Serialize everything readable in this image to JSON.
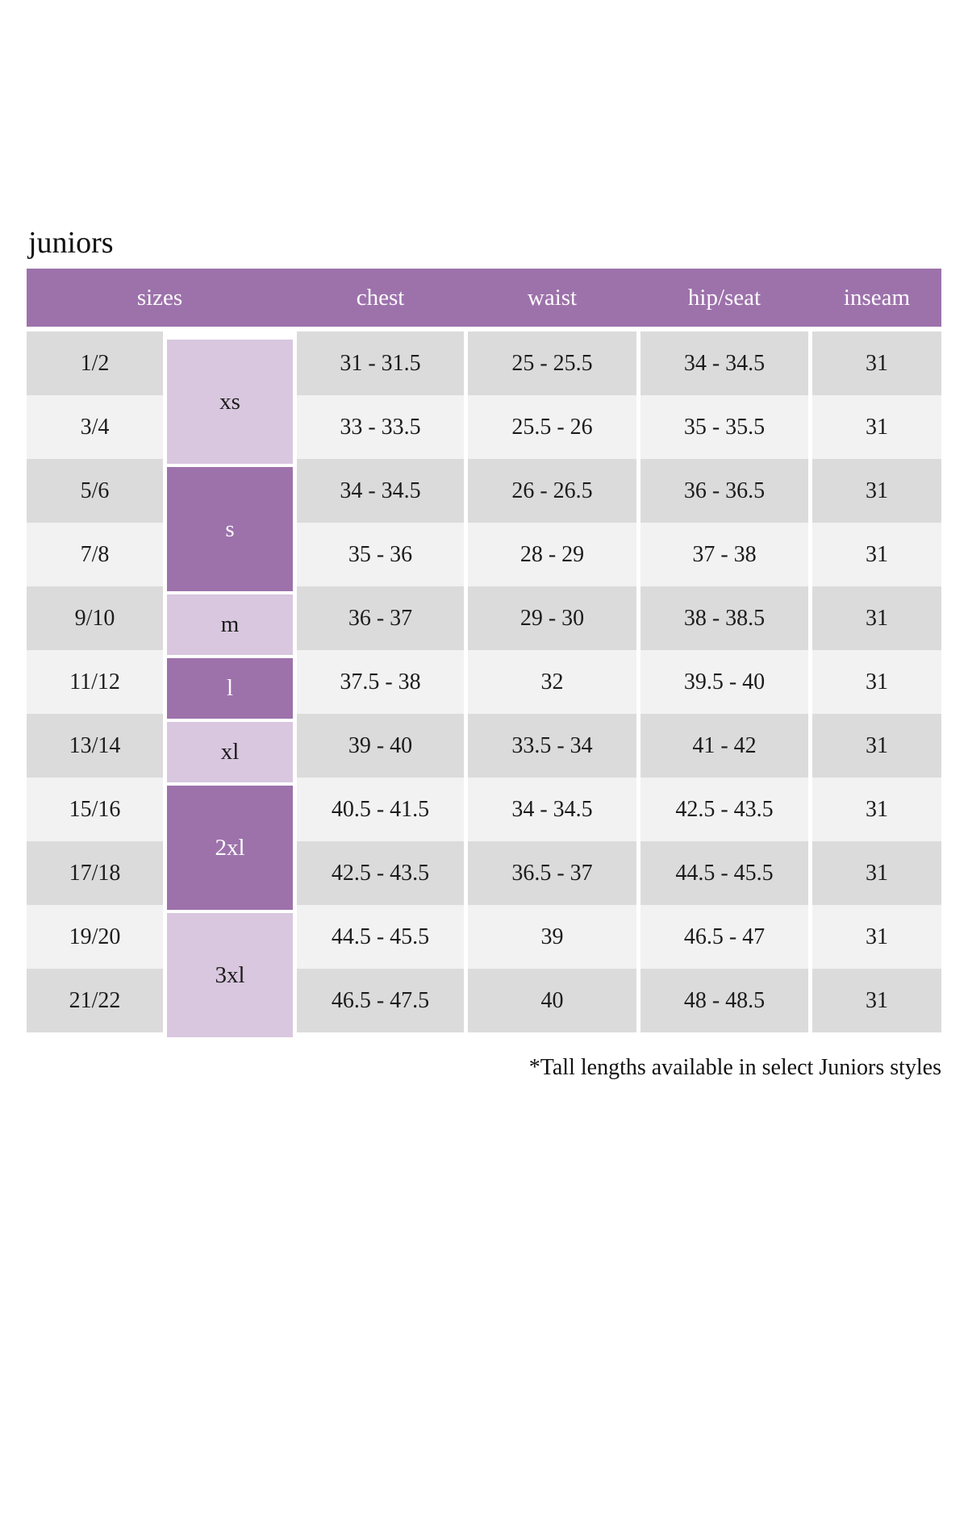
{
  "page": {
    "title": "juniors",
    "footnote": "*Tall lengths available in select Juniors styles"
  },
  "table": {
    "headers": {
      "sizes": "sizes",
      "chest": "chest",
      "waist": "waist",
      "hip_seat": "hip/seat",
      "inseam": "inseam"
    },
    "size_groups": [
      {
        "label": "xs",
        "span": 2,
        "shade": "light"
      },
      {
        "label": "s",
        "span": 2,
        "shade": "dark"
      },
      {
        "label": "m",
        "span": 1,
        "shade": "light"
      },
      {
        "label": "l",
        "span": 1,
        "shade": "dark"
      },
      {
        "label": "xl",
        "span": 1,
        "shade": "light"
      },
      {
        "label": "2xl",
        "span": 2,
        "shade": "dark"
      },
      {
        "label": "3xl",
        "span": 2,
        "shade": "light"
      }
    ],
    "rows": [
      {
        "size": "1/2",
        "chest": "31 - 31.5",
        "waist": "25 - 25.5",
        "hip_seat": "34 - 34.5",
        "inseam": "31"
      },
      {
        "size": "3/4",
        "chest": "33 - 33.5",
        "waist": "25.5 - 26",
        "hip_seat": "35 - 35.5",
        "inseam": "31"
      },
      {
        "size": "5/6",
        "chest": "34 - 34.5",
        "waist": "26 - 26.5",
        "hip_seat": "36 - 36.5",
        "inseam": "31"
      },
      {
        "size": "7/8",
        "chest": "35 - 36",
        "waist": "28 - 29",
        "hip_seat": "37 - 38",
        "inseam": "31"
      },
      {
        "size": "9/10",
        "chest": "36 - 37",
        "waist": "29 - 30",
        "hip_seat": "38 - 38.5",
        "inseam": "31"
      },
      {
        "size": "11/12",
        "chest": "37.5 - 38",
        "waist": "32",
        "hip_seat": "39.5 - 40",
        "inseam": "31"
      },
      {
        "size": "13/14",
        "chest": "39 - 40",
        "waist": "33.5 - 34",
        "hip_seat": "41 - 42",
        "inseam": "31"
      },
      {
        "size": "15/16",
        "chest": "40.5 - 41.5",
        "waist": "34 - 34.5",
        "hip_seat": "42.5 - 43.5",
        "inseam": "31"
      },
      {
        "size": "17/18",
        "chest": "42.5 - 43.5",
        "waist": "36.5 - 37",
        "hip_seat": "44.5 - 45.5",
        "inseam": "31"
      },
      {
        "size": "19/20",
        "chest": "44.5 - 45.5",
        "waist": "39",
        "hip_seat": "46.5 - 47",
        "inseam": "31"
      },
      {
        "size": "21/22",
        "chest": "46.5 - 47.5",
        "waist": "40",
        "hip_seat": "48 - 48.5",
        "inseam": "31"
      }
    ],
    "colors": {
      "header_bg": "#9d72ab",
      "group_dark_bg": "#9d72ab",
      "group_light_bg": "#d8c7de",
      "row_odd_bg": "#dcdbdc",
      "row_even_bg": "#f3f2f3",
      "header_text": "#fdfcfd",
      "body_text": "#1c1c1c"
    }
  }
}
